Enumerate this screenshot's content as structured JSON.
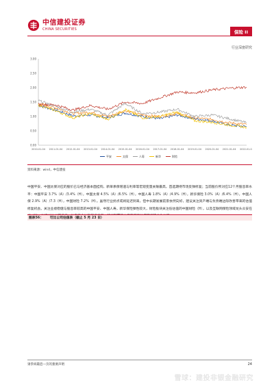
{
  "header": {
    "logo_cn": "中信建投证券",
    "logo_en": "CHINA SECURITIES",
    "section_tag": "保险 II",
    "report_type": "行业深度研究"
  },
  "source_text": "资料来源：wind，中信建投",
  "body_paragraph": "中国平安、中国太保对应的股价已与经济基本面挂钩，新单承保增速与利率等宏观变量关联最高，首选期待市场反弹修复；当前股价所对应12个月股息率水平：中国平安 3.7%（A）/3.4%（H），中国太保 4.5%（A）/6.5%（H），中国人寿 1.8%（A）/4.9%（H），新华保险 3.0%（A）/6.4%（H），中国人保 2.9%（A）/7.3（H），中国财险 7.2%（H）。虽然行业拐点或将延迟到来，但中长期发展前景依然向好，建议关注资产端与负债端边际改善带来的估值修复机会。关注业绩稳健与股息率较高的中国平安、中国人寿，新华保险弹性较大，财险板块关注低估值的中国财险（H），以及互联网保险领域龙头众安在线（H）。对于关注长期投资、注重安全边际的投资者，建议配置基本面稳健且估值较低的龙头公司。",
  "table_title": {
    "label": "图表56：",
    "text": "可比公司估值表（截止 5 月 23 日）"
  },
  "footer": {
    "note": "请参阅最后一页的重要声明",
    "page_number": "24",
    "watermark": "雪球：建投非银金融研究"
  },
  "colors": {
    "brand_red": "#c8102e",
    "series_pingan": "#1f4e9c",
    "series_cpic": "#f28c28",
    "series_chinalife": "#9e9e9e",
    "series_nci": "#f2c100",
    "series_picc": "#c0392b"
  },
  "chart_data": {
    "type": "line",
    "x": [
      "2010-01-04",
      "2011-01-04",
      "2012-01-04",
      "2013-01-04",
      "2014-01-04",
      "2015-01-04",
      "2016-01-04",
      "2017-01-04",
      "2018-01-04",
      "2019-01-04",
      "2020-01-04",
      "2021-01-04",
      "2022-01-04"
    ],
    "ylim": [
      0,
      3
    ],
    "yticks": [
      "0.00",
      "0.50",
      "1.00",
      "1.50",
      "2.00",
      "2.50",
      "3.00"
    ],
    "series": [
      {
        "name": "平安",
        "values": [
          1.38,
          1.22,
          1.02,
          1.05,
          0.95,
          1.12,
          1.0,
          0.92,
          1.05,
          0.92,
          0.85,
          0.7,
          0.65
        ]
      },
      {
        "name": "太保",
        "values": [
          1.45,
          1.3,
          1.1,
          1.15,
          1.0,
          1.2,
          1.05,
          1.0,
          1.1,
          0.95,
          0.9,
          0.78,
          0.72
        ]
      },
      {
        "name": "人寿",
        "values": [
          1.55,
          1.35,
          1.15,
          1.25,
          1.05,
          1.45,
          1.1,
          1.15,
          1.25,
          1.0,
          1.05,
          0.92,
          0.78
        ]
      },
      {
        "name": "新华",
        "values": [
          1.4,
          1.2,
          0.95,
          1.1,
          0.9,
          1.25,
          0.95,
          1.0,
          1.15,
          0.85,
          0.8,
          0.7,
          0.62
        ]
      },
      {
        "name": "财险",
        "values": [
          1.42,
          1.4,
          1.22,
          1.38,
          1.25,
          1.5,
          1.45,
          1.65,
          1.85,
          1.82,
          1.92,
          1.98,
          2.02
        ]
      }
    ]
  }
}
